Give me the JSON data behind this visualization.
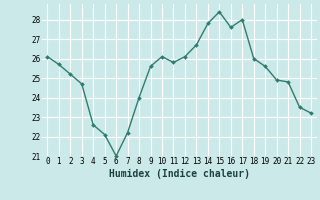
{
  "x": [
    0,
    1,
    2,
    3,
    4,
    5,
    6,
    7,
    8,
    9,
    10,
    11,
    12,
    13,
    14,
    15,
    16,
    17,
    18,
    19,
    20,
    21,
    22,
    23
  ],
  "y": [
    26.1,
    25.7,
    25.2,
    24.7,
    22.6,
    22.1,
    21.0,
    22.2,
    24.0,
    25.6,
    26.1,
    25.8,
    26.1,
    26.7,
    27.8,
    28.4,
    27.6,
    28.0,
    26.0,
    25.6,
    24.9,
    24.8,
    23.5,
    23.2
  ],
  "line_color": "#2e7d6e",
  "marker": "D",
  "marker_size": 2.0,
  "bg_color": "#cce9e9",
  "grid_color": "#ffffff",
  "grid_minor_color": "#ddf5f5",
  "xlabel": "Humidex (Indice chaleur)",
  "ylim": [
    21,
    28.8
  ],
  "xlim": [
    -0.5,
    23.5
  ],
  "yticks": [
    21,
    22,
    23,
    24,
    25,
    26,
    27,
    28
  ],
  "xticks": [
    0,
    1,
    2,
    3,
    4,
    5,
    6,
    7,
    8,
    9,
    10,
    11,
    12,
    13,
    14,
    15,
    16,
    17,
    18,
    19,
    20,
    21,
    22,
    23
  ],
  "tick_fontsize": 5.5,
  "xlabel_fontsize": 7.0,
  "linewidth": 1.0,
  "figsize": [
    3.2,
    2.0
  ],
  "dpi": 100
}
